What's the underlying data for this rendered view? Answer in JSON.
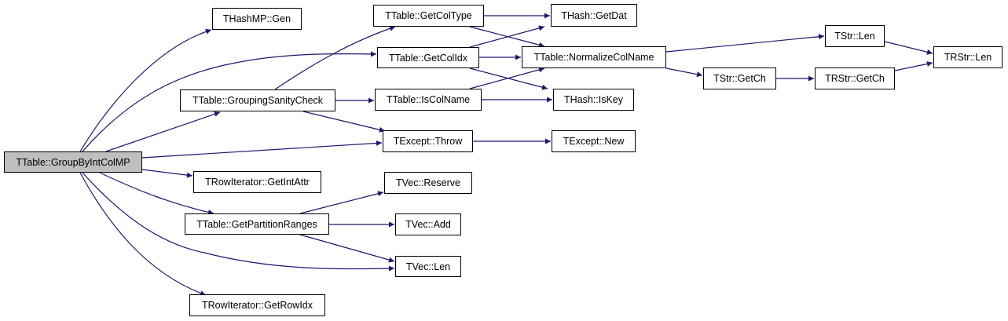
{
  "graph": {
    "type": "call-graph",
    "edge_color": "#191970",
    "root_fill": "#bfbfbf",
    "nodes": {
      "groupby": "TTable::GroupByIntColMP",
      "hashmp_gen": "THashMP::Gen",
      "sanity": "TTable::GroupingSanityCheck",
      "getcoltype": "TTable::GetColType",
      "getcolidx": "TTable::GetColIdx",
      "iscolname": "TTable::IsColName",
      "throw": "TExcept::Throw",
      "getintattr": "TRowIterator::GetIntAttr",
      "reserve": "TVec::Reserve",
      "partition": "TTable::GetPartitionRanges",
      "vecadd": "TVec::Add",
      "veclen": "TVec::Len",
      "getrowidx": "TRowIterator::GetRowIdx",
      "getdat": "THash::GetDat",
      "normalize": "TTable::NormalizeColName",
      "iskey": "THash::IsKey",
      "except_new": "TExcept::New",
      "tstr_len": "TStr::Len",
      "trstr_len": "TRStr::Len",
      "tstr_getch": "TStr::GetCh",
      "trstr_getch": "TRStr::GetCh"
    },
    "edges": [
      [
        "groupby",
        "hashmp_gen"
      ],
      [
        "groupby",
        "getcolidx"
      ],
      [
        "groupby",
        "sanity"
      ],
      [
        "groupby",
        "throw"
      ],
      [
        "groupby",
        "getintattr"
      ],
      [
        "groupby",
        "partition"
      ],
      [
        "groupby",
        "veclen"
      ],
      [
        "groupby",
        "getrowidx"
      ],
      [
        "sanity",
        "getcoltype"
      ],
      [
        "sanity",
        "iscolname"
      ],
      [
        "sanity",
        "throw"
      ],
      [
        "getcoltype",
        "getdat"
      ],
      [
        "getcoltype",
        "normalize"
      ],
      [
        "getcolidx",
        "getdat"
      ],
      [
        "getcolidx",
        "normalize"
      ],
      [
        "getcolidx",
        "iskey"
      ],
      [
        "iscolname",
        "normalize"
      ],
      [
        "iscolname",
        "iskey"
      ],
      [
        "throw",
        "except_new"
      ],
      [
        "normalize",
        "tstr_len"
      ],
      [
        "normalize",
        "tstr_getch"
      ],
      [
        "tstr_len",
        "trstr_len"
      ],
      [
        "tstr_getch",
        "trstr_getch"
      ],
      [
        "trstr_getch",
        "trstr_len"
      ],
      [
        "partition",
        "reserve"
      ],
      [
        "partition",
        "vecadd"
      ],
      [
        "partition",
        "veclen"
      ]
    ]
  }
}
